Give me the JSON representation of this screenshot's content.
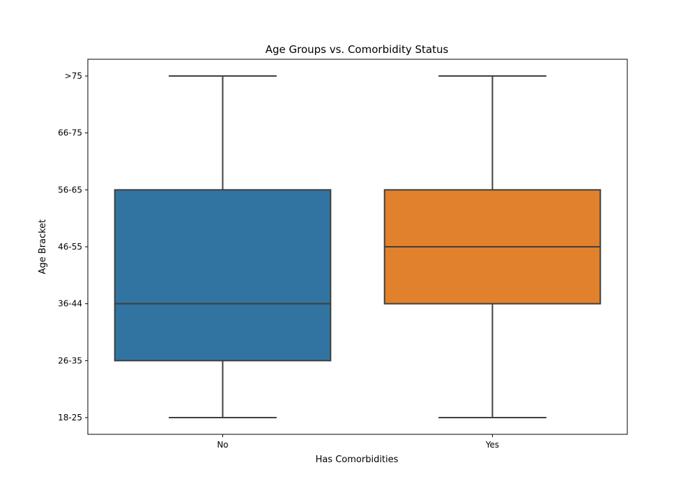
{
  "chart_data": {
    "type": "box",
    "title": "Age Groups vs. Comorbidity Status",
    "xlabel": "Has Comorbidities",
    "ylabel": "Age Bracket",
    "categories": [
      "No",
      "Yes"
    ],
    "y_categories": [
      "18-25",
      "26-35",
      "36-44",
      "46-55",
      "56-65",
      "66-75",
      ">75"
    ],
    "boxes": [
      {
        "category": "No",
        "color": "#3274a1",
        "whisker_low": "18-25",
        "q1": "26-35",
        "median": "36-44",
        "q3": "56-65",
        "whisker_high": ">75"
      },
      {
        "category": "Yes",
        "color": "#e1812c",
        "whisker_low": "18-25",
        "q1": "36-44",
        "median": "46-55",
        "q3": "56-65",
        "whisker_high": ">75"
      }
    ],
    "grid": false,
    "legend": false
  }
}
